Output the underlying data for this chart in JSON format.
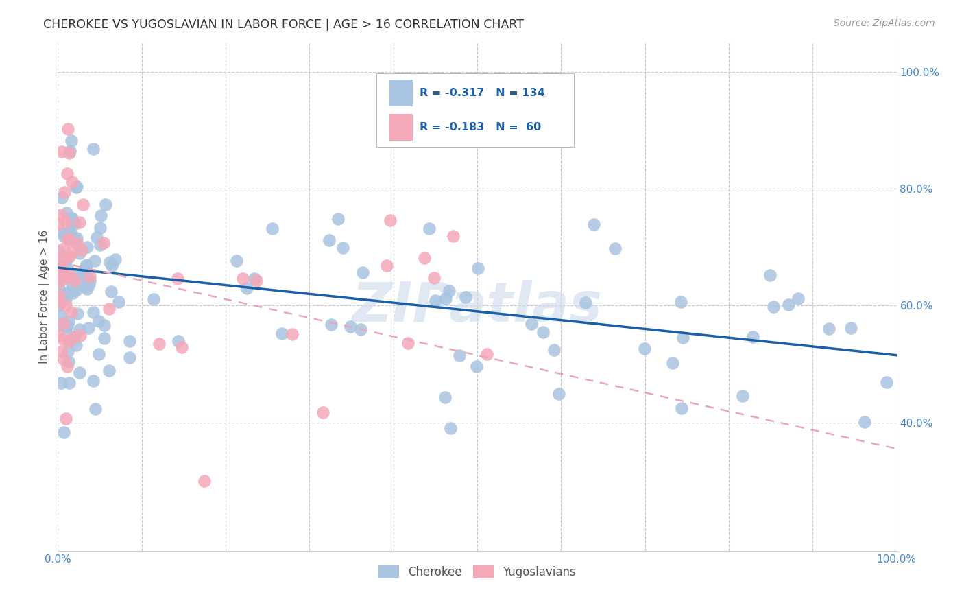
{
  "title": "CHEROKEE VS YUGOSLAVIAN IN LABOR FORCE | AGE > 16 CORRELATION CHART",
  "source": "Source: ZipAtlas.com",
  "ylabel": "In Labor Force | Age > 16",
  "xlim": [
    0.0,
    1.0
  ],
  "ylim": [
    0.18,
    1.05
  ],
  "cherokee_R": -0.317,
  "cherokee_N": 134,
  "yugoslavian_R": -0.183,
  "yugoslavian_N": 60,
  "cherokee_color": "#a8c4e0",
  "yugoslavian_color": "#f4a8b8",
  "cherokee_line_color": "#1a5fa8",
  "yugoslavian_line_color": "#e8a8b8",
  "watermark": "ZIPatlas",
  "background_color": "#ffffff",
  "grid_color": "#c8c8d4",
  "tick_color": "#4488cc",
  "title_color": "#333333",
  "source_color": "#999999",
  "ylabel_color": "#555555",
  "legend_text_color": "#1a5fa8",
  "legend_border_color": "#bbbbbb",
  "bottom_label_color": "#555555",
  "cherokee_line_start_y": 0.665,
  "cherokee_line_end_y": 0.515,
  "yugoslavian_line_start_y": 0.675,
  "yugoslavian_line_end_y": 0.355
}
